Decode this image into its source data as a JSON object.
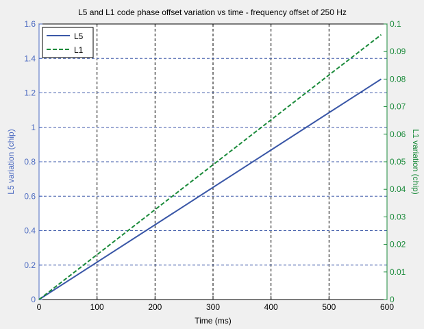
{
  "chart_data": {
    "type": "line",
    "title": "L5 and L1 code phase offset variation vs time - frequency offset of 250 Hz",
    "xlabel": "Time (ms)",
    "ylabel_left": "L5 variation (chip)",
    "ylabel_right": "L1 variation (chip)",
    "xlim": [
      0,
      600
    ],
    "ylim_left": [
      0,
      1.6
    ],
    "ylim_right": [
      0,
      0.1
    ],
    "x_ticks": [
      "0",
      "100",
      "200",
      "300",
      "400",
      "500",
      "600"
    ],
    "y_left_ticks": [
      "0",
      "0.2",
      "0.4",
      "0.6",
      "0.8",
      "1",
      "1.2",
      "1.4",
      "1.6"
    ],
    "y_right_ticks": [
      "0",
      "0.01",
      "0.02",
      "0.03",
      "0.04",
      "0.05",
      "0.06",
      "0.07",
      "0.08",
      "0.09",
      "0.1"
    ],
    "grid": true,
    "legend_position": "top-left",
    "series": [
      {
        "name": "L5",
        "axis": "left",
        "style": "solid",
        "color": "#3a57a7",
        "x": [
          0,
          100,
          200,
          300,
          400,
          500,
          590
        ],
        "y": [
          0,
          0.217,
          0.434,
          0.651,
          0.868,
          1.085,
          1.28
        ]
      },
      {
        "name": "L1",
        "axis": "right",
        "style": "dashed",
        "color": "#1a8a3a",
        "x": [
          0,
          100,
          200,
          300,
          400,
          500,
          590
        ],
        "y": [
          0,
          0.0163,
          0.0326,
          0.0489,
          0.0652,
          0.0815,
          0.0961
        ]
      }
    ]
  },
  "colors": {
    "left_axis": "#4a69c0",
    "right_axis": "#1a8a3a",
    "plot_bg": "#ffffff",
    "page_bg": "#f0f0f0"
  }
}
